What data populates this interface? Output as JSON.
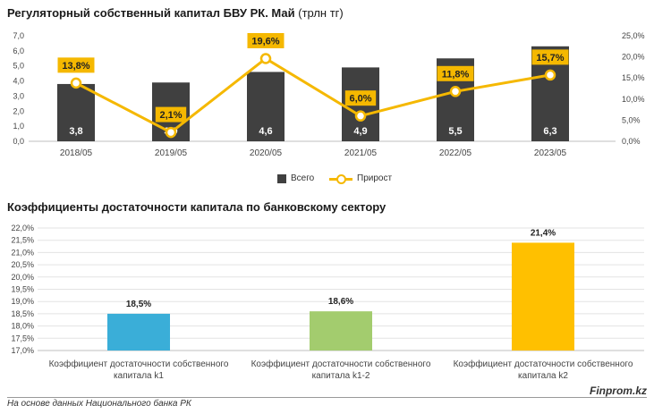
{
  "titles": {
    "chart1_main": "Регуляторный собственный капитал БВУ РК. Май",
    "chart1_unit": "(трлн тг)",
    "chart2_main": "Коэффициенты достаточности капитала по банковскому сектору"
  },
  "legend": {
    "bar_label": "Всего",
    "line_label": "Прирост"
  },
  "footer": {
    "source": "На основе данных Национального банка РК",
    "brand": "Finprom.kz"
  },
  "colors": {
    "bar": "#404040",
    "line": "#f5b800",
    "k1": "#3aaed8",
    "k1_2": "#a3cc6e",
    "k2": "#ffc000"
  },
  "chart_data": [
    {
      "type": "bar",
      "categories": [
        "2018/05",
        "2019/05",
        "2020/05",
        "2021/05",
        "2022/05",
        "2023/05"
      ],
      "series": [
        {
          "name": "Всего",
          "type": "bar",
          "axis": "left",
          "values": [
            3.8,
            3.9,
            4.6,
            4.9,
            5.5,
            6.3
          ],
          "labels": [
            "3,8",
            "3,9",
            "4,6",
            "4,9",
            "5,5",
            "6,3"
          ]
        },
        {
          "name": "Прирост",
          "type": "line",
          "axis": "right",
          "values": [
            13.8,
            2.1,
            19.6,
            6.0,
            11.8,
            15.7
          ],
          "labels": [
            "13,8%",
            "2,1%",
            "19,6%",
            "6,0%",
            "11,8%",
            "15,7%"
          ]
        }
      ],
      "ylim": [
        0,
        7
      ],
      "yticks": [
        "0,0",
        "1,0",
        "2,0",
        "3,0",
        "4,0",
        "5,0",
        "6,0",
        "7,0"
      ],
      "y2lim": [
        0,
        25
      ],
      "y2ticks": [
        "0,0%",
        "5,0%",
        "10,0%",
        "15,0%",
        "20,0%",
        "25,0%"
      ],
      "grid": false,
      "legend_position": "bottom"
    },
    {
      "type": "bar",
      "categories": [
        "Коэффициент достаточности собственного капитала k1",
        "Коэффициент достаточности собственного капитала k1-2",
        "Коэффициент достаточности собственного капитала k2"
      ],
      "category_lines": [
        [
          "Коэффициент достаточности собственного",
          "капитала k1"
        ],
        [
          "Коэффициент достаточности собственного",
          "капитала k1-2"
        ],
        [
          "Коэффициент достаточности собственного",
          "капитала k2"
        ]
      ],
      "values": [
        18.5,
        18.6,
        21.4
      ],
      "labels": [
        "18,5%",
        "18,6%",
        "21,4%"
      ],
      "ylim": [
        17,
        22
      ],
      "yticks": [
        "17,0%",
        "17,5%",
        "18,0%",
        "18,5%",
        "19,0%",
        "19,5%",
        "20,0%",
        "20,5%",
        "21,0%",
        "21,5%",
        "22,0%"
      ],
      "grid": true
    }
  ]
}
